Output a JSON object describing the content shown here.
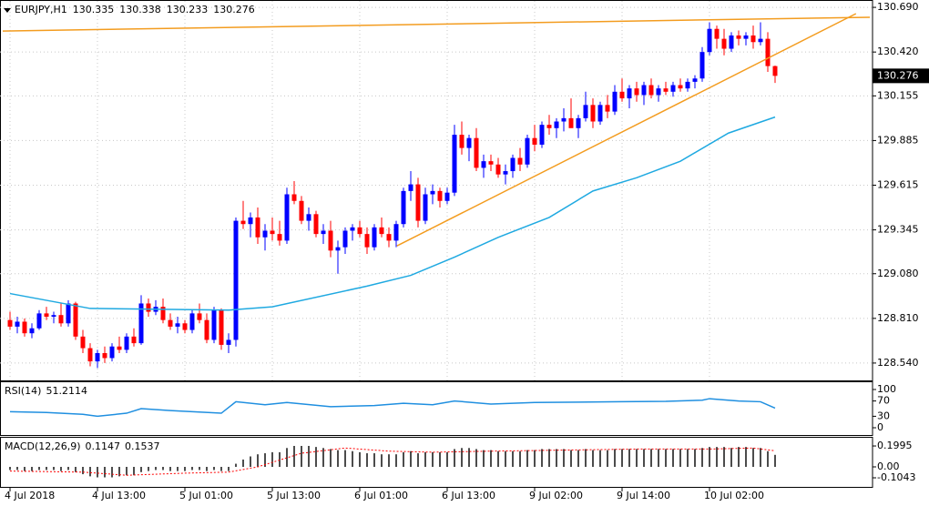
{
  "chart_data": [
    {
      "type": "candlestick",
      "title": "EURJPY,H1",
      "xlim": [
        -1.375,
        118.375
      ],
      "ylim": [
        128.435,
        130.729
      ],
      "yticks": [
        {
          "value": 130.69,
          "label": "130.690"
        },
        {
          "value": 130.42,
          "label": "130.420"
        },
        130.155,
        129.885,
        129.615,
        129.345,
        {
          "value": 129.08,
          "label": "129.080"
        },
        {
          "value": 128.81,
          "label": "128.810"
        },
        {
          "value": 128.54,
          "label": "128.540"
        }
      ],
      "xticks": [
        {
          "value": 0,
          "label": "4 Jul 2018"
        },
        {
          "value": 12,
          "label": "4 Jul 13:00"
        },
        {
          "value": 24,
          "label": "5 Jul 01:00"
        },
        {
          "value": 36,
          "label": "5 Jul 13:00"
        },
        {
          "value": 48,
          "label": "6 Jul 01:00"
        },
        {
          "value": 60,
          "label": "6 Jul 13:00"
        },
        {
          "value": 72,
          "label": "9 Jul 02:00"
        },
        {
          "value": 84,
          "label": "9 Jul 14:00"
        },
        {
          "value": 96,
          "label": "10 Jul 02:00"
        }
      ],
      "grid": true,
      "up_color": "#0000ff",
      "down_color": "#ff0000",
      "ohlc": [
        [
          128.8,
          128.85,
          128.74,
          128.76
        ],
        [
          128.76,
          128.82,
          128.72,
          128.79
        ],
        [
          128.79,
          128.81,
          128.7,
          128.72
        ],
        [
          128.72,
          128.78,
          128.69,
          128.75
        ],
        [
          128.75,
          128.86,
          128.74,
          128.84
        ],
        [
          128.84,
          128.88,
          128.8,
          128.82
        ],
        [
          128.82,
          128.85,
          128.78,
          128.83
        ],
        [
          128.83,
          128.9,
          128.76,
          128.78
        ],
        [
          128.78,
          128.92,
          128.76,
          128.9
        ],
        [
          128.9,
          128.91,
          128.68,
          128.7
        ],
        [
          128.7,
          128.74,
          128.6,
          128.63
        ],
        [
          128.63,
          128.66,
          128.52,
          128.55
        ],
        [
          128.55,
          128.62,
          128.51,
          128.6
        ],
        [
          128.6,
          128.64,
          128.54,
          128.57
        ],
        [
          128.57,
          128.66,
          128.55,
          128.64
        ],
        [
          128.64,
          128.7,
          128.6,
          128.62
        ],
        [
          128.62,
          128.72,
          128.6,
          128.7
        ],
        [
          128.7,
          128.75,
          128.64,
          128.66
        ],
        [
          128.66,
          128.95,
          128.65,
          128.9
        ],
        [
          128.9,
          128.93,
          128.82,
          128.85
        ],
        [
          128.85,
          128.92,
          128.83,
          128.88
        ],
        [
          128.88,
          128.93,
          128.78,
          128.8
        ],
        [
          128.8,
          128.84,
          128.74,
          128.76
        ],
        [
          128.76,
          128.82,
          128.72,
          128.78
        ],
        [
          128.78,
          128.8,
          128.72,
          128.74
        ],
        [
          128.74,
          128.86,
          128.72,
          128.84
        ],
        [
          128.84,
          128.9,
          128.78,
          128.8
        ],
        [
          128.8,
          128.84,
          128.66,
          128.68
        ],
        [
          128.68,
          128.88,
          128.66,
          128.86
        ],
        [
          128.86,
          128.87,
          128.62,
          128.65
        ],
        [
          128.65,
          128.72,
          128.6,
          128.68
        ],
        [
          128.68,
          129.42,
          128.64,
          129.4
        ],
        [
          129.4,
          129.52,
          129.35,
          129.38
        ],
        [
          129.38,
          129.45,
          129.3,
          129.42
        ],
        [
          129.42,
          129.48,
          129.26,
          129.3
        ],
        [
          129.3,
          129.38,
          129.22,
          129.34
        ],
        [
          129.34,
          129.42,
          129.28,
          129.32
        ],
        [
          129.32,
          129.4,
          129.25,
          129.28
        ],
        [
          129.28,
          129.6,
          129.26,
          129.56
        ],
        [
          129.56,
          129.64,
          129.5,
          129.52
        ],
        [
          129.52,
          129.55,
          129.38,
          129.4
        ],
        [
          129.4,
          129.48,
          129.34,
          129.44
        ],
        [
          129.44,
          129.46,
          129.3,
          129.32
        ],
        [
          129.32,
          129.38,
          129.26,
          129.34
        ],
        [
          129.34,
          129.4,
          129.18,
          129.22
        ],
        [
          129.22,
          129.28,
          129.08,
          129.24
        ],
        [
          129.24,
          129.36,
          129.2,
          129.34
        ],
        [
          129.34,
          129.38,
          129.28,
          129.36
        ],
        [
          129.36,
          129.4,
          129.3,
          129.32
        ],
        [
          129.32,
          129.36,
          129.2,
          129.24
        ],
        [
          129.24,
          129.38,
          129.22,
          129.36
        ],
        [
          129.36,
          129.42,
          129.3,
          129.32
        ],
        [
          129.32,
          129.36,
          129.24,
          129.28
        ],
        [
          129.28,
          129.4,
          129.24,
          129.38
        ],
        [
          129.38,
          129.6,
          129.36,
          129.58
        ],
        [
          129.58,
          129.7,
          129.52,
          129.62
        ],
        [
          129.62,
          129.66,
          129.36,
          129.4
        ],
        [
          129.4,
          129.6,
          129.38,
          129.56
        ],
        [
          129.56,
          129.62,
          129.5,
          129.58
        ],
        [
          129.58,
          129.6,
          129.48,
          129.52
        ],
        [
          129.52,
          129.6,
          129.5,
          129.57
        ],
        [
          129.57,
          129.98,
          129.55,
          129.92
        ],
        [
          129.92,
          130.0,
          129.8,
          129.84
        ],
        [
          129.84,
          129.92,
          129.76,
          129.9
        ],
        [
          129.9,
          129.96,
          129.7,
          129.72
        ],
        [
          129.72,
          129.8,
          129.66,
          129.76
        ],
        [
          129.76,
          129.8,
          129.7,
          129.74
        ],
        [
          129.74,
          129.78,
          129.66,
          129.68
        ],
        [
          129.68,
          129.74,
          129.62,
          129.7
        ],
        [
          129.7,
          129.8,
          129.66,
          129.78
        ],
        [
          129.78,
          129.84,
          129.7,
          129.74
        ],
        [
          129.74,
          129.92,
          129.72,
          129.9
        ],
        [
          129.9,
          129.98,
          129.82,
          129.86
        ],
        [
          129.86,
          130.0,
          129.84,
          129.98
        ],
        [
          129.98,
          130.04,
          129.92,
          129.96
        ],
        [
          129.96,
          130.02,
          129.9,
          130.0
        ],
        [
          130.0,
          130.08,
          129.94,
          130.02
        ],
        [
          130.02,
          130.14,
          129.98,
          129.96
        ],
        [
          129.96,
          130.04,
          129.9,
          130.02
        ],
        [
          130.02,
          130.18,
          130.0,
          130.1
        ],
        [
          130.1,
          130.14,
          129.96,
          130.0
        ],
        [
          130.0,
          130.12,
          129.98,
          130.1
        ],
        [
          130.1,
          130.16,
          130.02,
          130.06
        ],
        [
          130.06,
          130.22,
          130.04,
          130.18
        ],
        [
          130.18,
          130.26,
          130.12,
          130.14
        ],
        [
          130.14,
          130.22,
          130.08,
          130.2
        ],
        [
          130.2,
          130.24,
          130.12,
          130.16
        ],
        [
          130.16,
          130.24,
          130.1,
          130.22
        ],
        [
          130.22,
          130.26,
          130.14,
          130.16
        ],
        [
          130.16,
          130.22,
          130.12,
          130.2
        ],
        [
          130.2,
          130.24,
          130.16,
          130.18
        ],
        [
          130.18,
          130.24,
          130.15,
          130.22
        ],
        [
          130.22,
          130.26,
          130.18,
          130.2
        ],
        [
          130.2,
          130.26,
          130.18,
          130.24
        ],
        [
          130.24,
          130.28,
          130.2,
          130.26
        ],
        [
          130.26,
          130.45,
          130.24,
          130.42
        ],
        [
          130.42,
          130.6,
          130.4,
          130.56
        ],
        [
          130.56,
          130.58,
          130.44,
          130.5
        ],
        [
          130.5,
          130.56,
          130.4,
          130.44
        ],
        [
          130.44,
          130.54,
          130.42,
          130.52
        ],
        [
          130.52,
          130.55,
          130.46,
          130.5
        ],
        [
          130.5,
          130.54,
          130.46,
          130.52
        ],
        [
          130.52,
          130.58,
          130.44,
          130.48
        ],
        [
          130.48,
          130.6,
          130.46,
          130.5
        ],
        [
          130.5,
          130.54,
          130.3,
          130.335
        ],
        [
          130.335,
          130.338,
          130.233,
          130.276
        ]
      ],
      "lines": [
        {
          "color": "#1fa9e1",
          "x": [
            0,
            11,
            30,
            36,
            49,
            55,
            61,
            67,
            74,
            80,
            86,
            92,
            98.6,
            105
          ],
          "values": [
            128.96,
            128.87,
            128.86,
            128.88,
            129.005,
            129.07,
            129.18,
            129.3,
            129.42,
            129.58,
            129.66,
            129.76,
            129.93,
            130.027
          ]
        },
        {
          "color": "#f39c1f",
          "x": [
            -1,
            118
          ],
          "values": [
            130.547,
            130.63
          ]
        },
        {
          "color": "#f39c1f",
          "x": [
            53.1,
            116.1
          ],
          "values": [
            129.248,
            130.652
          ]
        }
      ]
    },
    {
      "type": "line",
      "title": "RSI(14)",
      "ylim": [
        -19,
        119
      ],
      "yticks": [
        100,
        70,
        30,
        0
      ],
      "color": "#1f8fe0",
      "x": [
        0,
        5,
        10,
        12,
        16,
        18,
        22,
        29,
        31,
        35,
        38,
        44,
        50,
        54,
        58,
        61,
        66,
        72,
        78,
        84,
        90,
        95,
        96,
        100,
        103,
        105
      ],
      "values": [
        42,
        40,
        35,
        30,
        38,
        50,
        45,
        38,
        68,
        60,
        66,
        55,
        58,
        64,
        60,
        70,
        62,
        66,
        67,
        68,
        69,
        72,
        76,
        70,
        68,
        51.2114
      ]
    },
    {
      "type": "bar",
      "title": "MACD(12,26,9)",
      "ylim": [
        -0.191,
        0.278
      ],
      "yticks": [
        0.1995,
        {
          "value": 0,
          "label": "0.00"
        },
        -0.1043
      ],
      "color": "#000000",
      "values": [
        -0.03,
        -0.03,
        -0.04,
        -0.04,
        -0.03,
        -0.03,
        -0.03,
        -0.04,
        -0.03,
        -0.05,
        -0.07,
        -0.09,
        -0.1,
        -0.1,
        -0.1,
        -0.09,
        -0.08,
        -0.08,
        -0.05,
        -0.04,
        -0.03,
        -0.03,
        -0.04,
        -0.04,
        -0.04,
        -0.03,
        -0.03,
        -0.04,
        -0.03,
        -0.04,
        -0.04,
        0.03,
        0.07,
        0.1,
        0.12,
        0.13,
        0.14,
        0.14,
        0.18,
        0.2,
        0.2,
        0.2,
        0.19,
        0.18,
        0.17,
        0.16,
        0.16,
        0.15,
        0.14,
        0.13,
        0.13,
        0.12,
        0.12,
        0.12,
        0.14,
        0.15,
        0.13,
        0.14,
        0.14,
        0.14,
        0.14,
        0.17,
        0.18,
        0.18,
        0.17,
        0.16,
        0.16,
        0.15,
        0.15,
        0.15,
        0.15,
        0.16,
        0.16,
        0.17,
        0.17,
        0.17,
        0.17,
        0.16,
        0.16,
        0.17,
        0.16,
        0.16,
        0.16,
        0.17,
        0.17,
        0.17,
        0.17,
        0.17,
        0.17,
        0.17,
        0.17,
        0.17,
        0.17,
        0.17,
        0.17,
        0.18,
        0.19,
        0.19,
        0.19,
        0.18,
        0.19,
        0.19,
        0.18,
        0.18,
        0.15,
        0.1147
      ],
      "signal": {
        "color": "#ff0000",
        "x": [
          0,
          10,
          16,
          24,
          30,
          34,
          40,
          46,
          52,
          58,
          66,
          76,
          86,
          96,
          102,
          105
        ],
        "values": [
          -0.04,
          -0.05,
          -0.08,
          -0.06,
          -0.05,
          0.0,
          0.13,
          0.18,
          0.15,
          0.14,
          0.15,
          0.16,
          0.17,
          0.17,
          0.18,
          0.1537
        ]
      }
    }
  ]
}
